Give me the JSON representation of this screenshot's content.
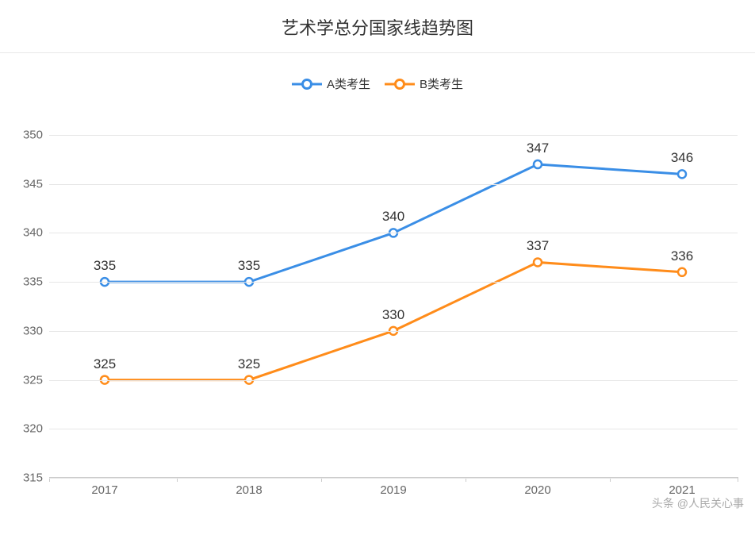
{
  "chart": {
    "type": "line",
    "title": "艺术学总分国家线趋势图",
    "title_fontsize": 22,
    "title_color": "#333333",
    "background_color": "#ffffff",
    "grid_color": "#e6e6e6",
    "axis_color": "#cccccc",
    "label_color": "#666666",
    "datalabel_color": "#333333",
    "datalabel_fontsize": 17,
    "axis_fontsize": 15,
    "ylim": [
      315,
      350
    ],
    "ytick_step": 5,
    "yticks": [
      315,
      320,
      325,
      330,
      335,
      340,
      345,
      350
    ],
    "categories": [
      "2017",
      "2018",
      "2019",
      "2020",
      "2021"
    ],
    "line_width": 3,
    "marker_radius": 5,
    "marker_stroke": 2.5,
    "marker_fill": "#ffffff",
    "series": [
      {
        "name": "A类考生",
        "color": "#3a8ee6",
        "values": [
          335,
          335,
          340,
          347,
          346
        ]
      },
      {
        "name": "B类考生",
        "color": "#ff8c1a",
        "values": [
          325,
          325,
          330,
          337,
          336
        ]
      }
    ]
  },
  "watermark": "头条 @人民关心事"
}
